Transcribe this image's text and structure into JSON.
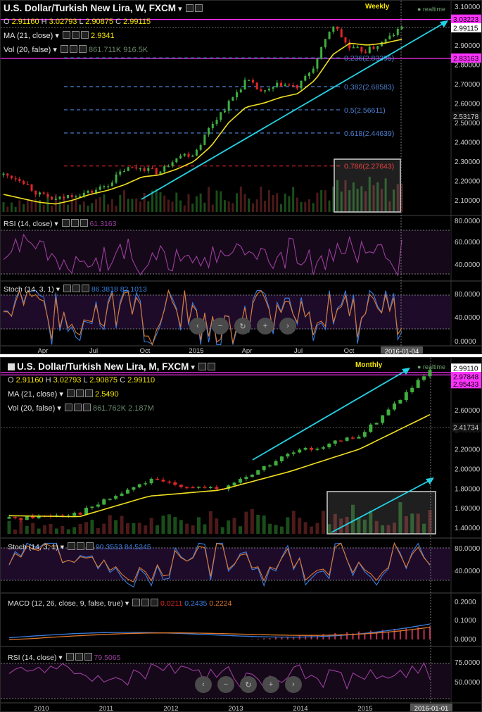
{
  "weekly": {
    "title": "U.S. Dollar/Turkish New Lira, W, FXCM",
    "period_tag": "Weekly",
    "realtime": "realtime",
    "ohlc": {
      "o_label": "O",
      "o": "2.91160",
      "h_label": "H",
      "h": "3.02793",
      "l_label": "L",
      "l": "2.90875",
      "c_label": "C",
      "c": "2.99115"
    },
    "ma_label": "MA (21, close)",
    "ma_value": "2.9341",
    "vol_label": "Vol (20, false)",
    "vol_values": "861.711K 916.5K",
    "price_labels": [
      "3.10000",
      "3.00000",
      "2.90000",
      "2.80000",
      "2.70000",
      "2.60000",
      "2.50000",
      "2.40000",
      "2.30000",
      "2.20000",
      "2.10000"
    ],
    "price_tags": {
      "top": "3.03223",
      "current": "2.99115",
      "low": "2.83163",
      "mid": "2.53178"
    },
    "fib_labels": [
      "0.236(2.83395)",
      "0.382(2.68583)",
      "0.5(2.56611)",
      "0.618(2.44639)",
      "0.786(2.27643)"
    ],
    "rsi_label": "RSI (14, close)",
    "rsi_value": "61.3163",
    "rsi_axis": [
      "80.0000",
      "60.0000",
      "40.0000"
    ],
    "stoch_label": "Stoch (14, 3, 1)",
    "stoch_values": "86.3818 82.1013",
    "stoch_axis": [
      "80.0000",
      "40.0000",
      "0.0000"
    ],
    "time_labels": [
      "Apr",
      "Jul",
      "Oct",
      "2015",
      "Apr",
      "Jul",
      "Oct"
    ],
    "cursor_date": "2016-01-04"
  },
  "monthly": {
    "title": "U.S. Dollar/Turkish New Lira, M, FXCM",
    "period_tag": "Monthly",
    "realtime": "realtime",
    "ohlc": {
      "o_label": "O",
      "o": "2.91160",
      "h_label": "H",
      "h": "3.02793",
      "l_label": "L",
      "l": "2.90875",
      "c_label": "C",
      "c": "2.99110"
    },
    "ma_label": "MA (21, close)",
    "ma_value": "2.5490",
    "vol_label": "Vol (20, false)",
    "vol_values": "861.762K 2.187M",
    "price_labels": [
      "2.60000",
      "2.40000",
      "2.20000",
      "2.00000",
      "1.80000",
      "1.60000",
      "1.40000"
    ],
    "price_tags": {
      "top": "2.99110",
      "high": "2.97848",
      "low": "2.95433",
      "mid": "2.41734"
    },
    "stoch_label": "Stoch (14, 3, 1)",
    "stoch_values": "90.3553 84.5245",
    "stoch_axis": [
      "80.0000",
      "40.0000"
    ],
    "macd_label": "MACD (12, 26, close, 9, false, true)",
    "macd_values": [
      "0.0211",
      "0.2435",
      "0.2224"
    ],
    "macd_axis": [
      "0.2000",
      "0.1000",
      "0.0000"
    ],
    "rsi_label": "RSI (14, close)",
    "rsi_value": "79.5065",
    "rsi_axis": [
      "75.0000",
      "50.0000"
    ],
    "time_labels": [
      "2010",
      "2011",
      "2012",
      "2013",
      "2014",
      "2015"
    ],
    "cursor_date": "2016-01-01"
  },
  "colors": {
    "up": "#3fae3f",
    "down": "#e02525",
    "ma": "#f0e020",
    "trend": "#22d3e6",
    "magenta": "#ff33ff",
    "fib": "#4d7fd0",
    "fib_red": "#e02525",
    "rsi": "#9b3ea0",
    "stoch_k": "#3a7ee0",
    "stoch_d": "#e0782a",
    "macd": "#3a7ee0",
    "signal": "#e0782a",
    "hist": "#c0305a"
  },
  "icons": {
    "nav": [
      "chevron-left-icon",
      "zoom-out-icon",
      "reset-icon",
      "zoom-in-icon",
      "chevron-right-icon"
    ]
  },
  "chart_data": [
    {
      "type": "line",
      "title": "U.S. Dollar/Turkish New Lira, W, FXCM",
      "x": [
        "2014-02",
        "2014-03",
        "2014-04",
        "2014-05",
        "2014-06",
        "2014-07",
        "2014-08",
        "2014-09",
        "2014-10",
        "2014-11",
        "2014-12",
        "2015-01",
        "2015-02",
        "2015-03",
        "2015-04",
        "2015-05",
        "2015-06",
        "2015-07",
        "2015-08",
        "2015-09",
        "2015-10",
        "2015-11",
        "2015-12",
        "2016-01"
      ],
      "series": [
        {
          "name": "close",
          "values": [
            2.23,
            2.21,
            2.13,
            2.1,
            2.13,
            2.14,
            2.18,
            2.26,
            2.27,
            2.24,
            2.33,
            2.34,
            2.49,
            2.6,
            2.72,
            2.65,
            2.7,
            2.68,
            2.8,
            3.01,
            2.88,
            2.87,
            2.92,
            2.99
          ]
        },
        {
          "name": "MA (21, close)",
          "values": [
            2.13,
            2.11,
            2.09,
            2.08,
            2.1,
            2.13,
            2.15,
            2.18,
            2.22,
            2.23,
            2.26,
            2.3,
            2.38,
            2.5,
            2.58,
            2.6,
            2.63,
            2.65,
            2.72,
            2.85,
            2.91,
            2.9,
            2.91,
            2.93
          ]
        }
      ],
      "ylim": [
        2.05,
        3.1
      ],
      "fibonacci": [
        0.236,
        0.382,
        0.5,
        0.618,
        0.786
      ]
    },
    {
      "type": "line",
      "title": "U.S. Dollar/Turkish New Lira, M, FXCM",
      "x": [
        "2010",
        "2011",
        "2012",
        "2013",
        "2014",
        "2015",
        "2016-01"
      ],
      "series": [
        {
          "name": "close",
          "values": [
            1.49,
            1.55,
            1.88,
            1.78,
            2.15,
            2.33,
            2.99
          ]
        },
        {
          "name": "MA (21, close)",
          "values": [
            1.52,
            1.51,
            1.72,
            1.78,
            1.97,
            2.2,
            2.55
          ]
        }
      ],
      "ylim": [
        1.35,
        3.0
      ]
    }
  ]
}
